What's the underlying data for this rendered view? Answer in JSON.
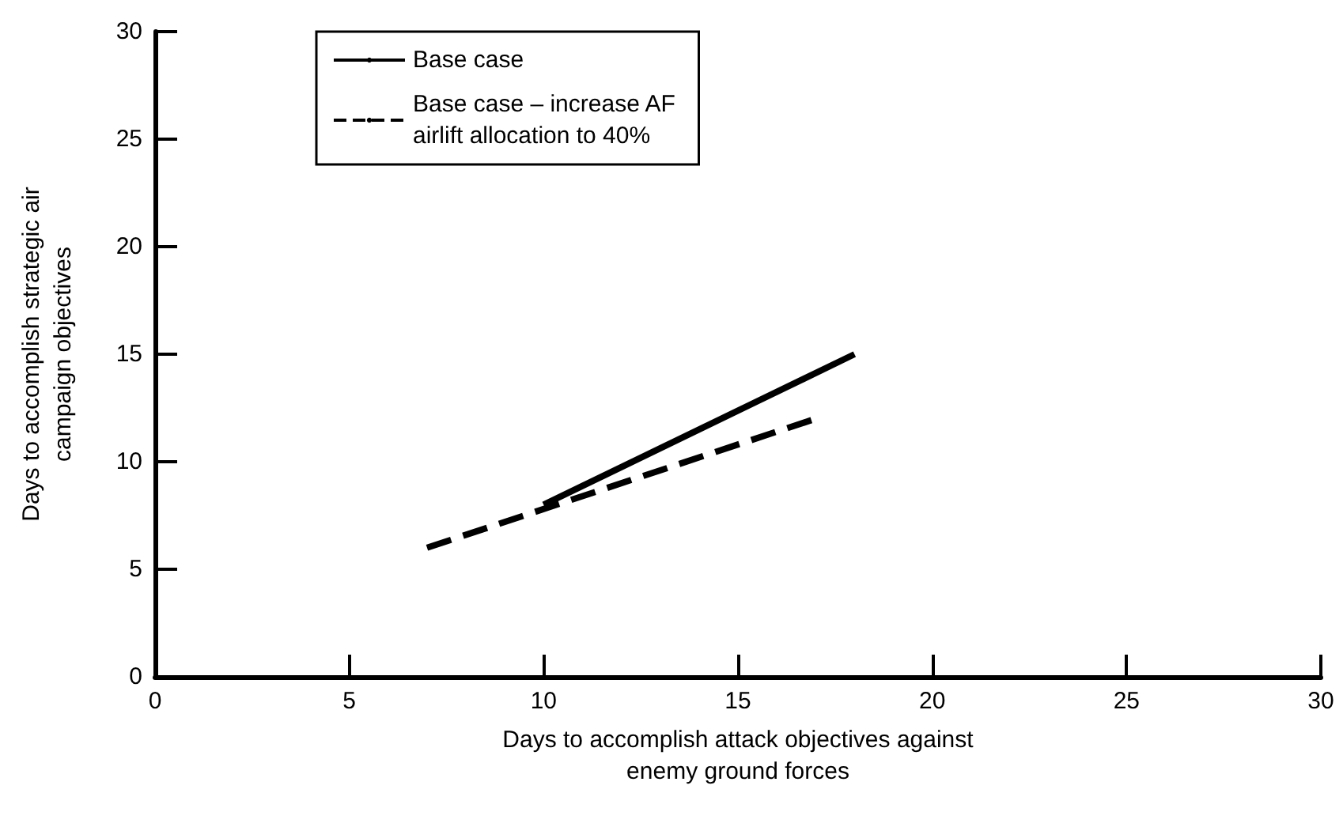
{
  "chart_data": {
    "type": "line",
    "xlabel": "Days to accomplish attack objectives against\nenemy ground forces",
    "ylabel": "Days to accomplish strategic air\ncampaign objectives",
    "xlim": [
      0,
      30
    ],
    "xticks": [
      0,
      5,
      10,
      15,
      20,
      25,
      30
    ],
    "ylim": [
      0,
      30
    ],
    "yticks": [
      0,
      5,
      10,
      15,
      20,
      25,
      30
    ],
    "grid": false,
    "legend": "top left",
    "marker": "none",
    "series": [
      {
        "name": "Base case",
        "color": "#000000",
        "line_style": "solid",
        "x": [
          10,
          18
        ],
        "values": [
          8,
          15
        ]
      },
      {
        "name": "Base case – increase AF\nairlift allocation to 40%",
        "color": "#000000",
        "line_style": "dashed",
        "x": [
          7,
          17
        ],
        "values": [
          6,
          12
        ]
      }
    ]
  }
}
